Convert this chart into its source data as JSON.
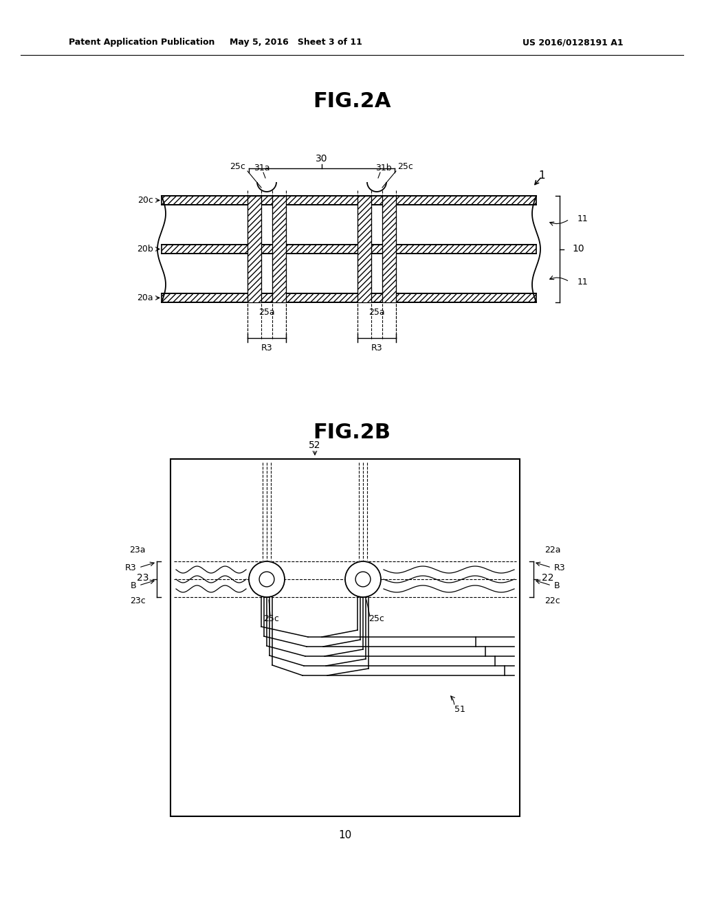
{
  "bg_color": "#ffffff",
  "header_left": "Patent Application Publication",
  "header_mid": "May 5, 2016   Sheet 3 of 11",
  "header_right": "US 2016/0128191 A1",
  "fig2a_title": "FIG.2A",
  "fig2b_title": "FIG.2B",
  "line_color": "#000000"
}
